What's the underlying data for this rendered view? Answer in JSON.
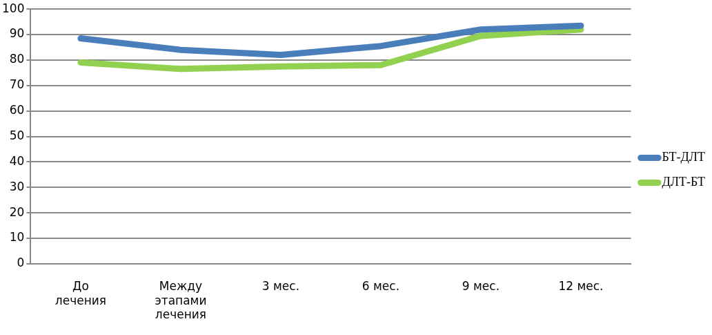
{
  "chart_data": {
    "type": "line",
    "categories": [
      "До лечения",
      "Между этапами лечения",
      "3 мес.",
      "6 мес.",
      "9 мес.",
      "12 мес."
    ],
    "series": [
      {
        "name": "БТ-ДЛТ",
        "color": "#4a7ebb",
        "values": [
          88.5,
          84,
          82,
          85.5,
          92,
          93.5
        ]
      },
      {
        "name": "ДЛТ-БТ",
        "color": "#92d050",
        "values": [
          79,
          76.5,
          77.5,
          78,
          89.5,
          92
        ]
      }
    ],
    "ylim": [
      0,
      100
    ],
    "yticks": [
      0,
      10,
      20,
      30,
      40,
      50,
      60,
      70,
      80,
      90,
      100
    ],
    "grid": "y",
    "legend": "right",
    "marker": "none",
    "line_style": "solid"
  }
}
